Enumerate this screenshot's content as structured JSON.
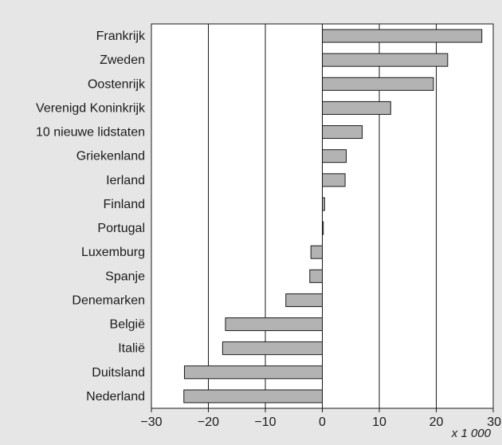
{
  "chart_data": {
    "type": "bar",
    "orientation": "horizontal",
    "categories": [
      "Frankrijk",
      "Zweden",
      "Oostenrijk",
      "Verenigd Koninkrijk",
      "10 nieuwe lidstaten",
      "Griekenland",
      "Ierland",
      "Finland",
      "Portugal",
      "Luxemburg",
      "Spanje",
      "Denemarken",
      "België",
      "Italië",
      "Duitsland",
      "Nederland"
    ],
    "values": [
      28,
      22,
      19.5,
      12,
      7,
      4.2,
      4,
      0.4,
      0.1,
      -2,
      -2.2,
      -6.4,
      -17,
      -17.5,
      -24.2,
      -24.3
    ],
    "xlim": [
      -30,
      30
    ],
    "xticks": [
      -30,
      -20,
      -10,
      0,
      10,
      20,
      30
    ],
    "xtick_labels": [
      "−30",
      "−20",
      "−10",
      "0",
      "10",
      "20",
      "30"
    ],
    "unit_label": "x 1 000",
    "grid": "vertical",
    "colors": {
      "background": "#e6e6e6",
      "plot": "#ffffff",
      "bar_fill": "#b3b3b3",
      "bar_stroke": "#1a1a1a",
      "grid": "#1a1a1a"
    }
  }
}
